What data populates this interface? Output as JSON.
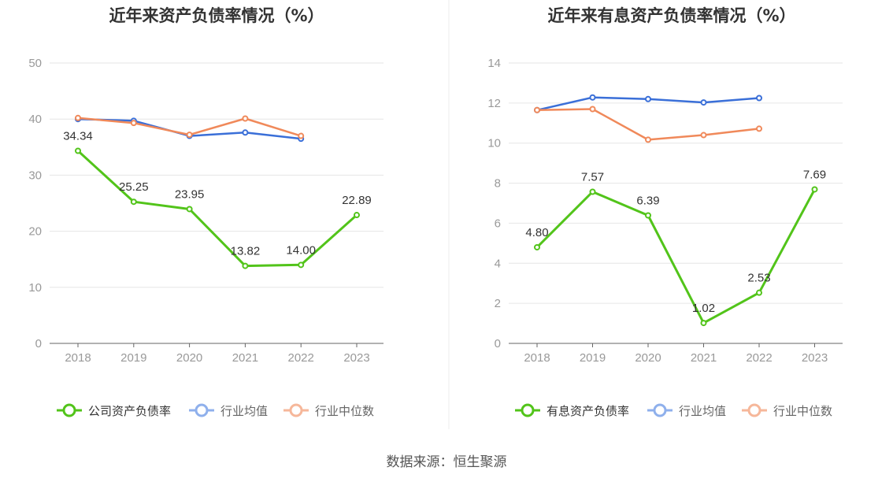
{
  "source": "数据来源：恒生聚源",
  "chart_data": [
    {
      "type": "line",
      "title": "近年来资产负债率情况（%）",
      "categories": [
        "2018",
        "2019",
        "2020",
        "2021",
        "2022",
        "2023"
      ],
      "yticks": [
        "0",
        "10",
        "20",
        "30",
        "40",
        "50"
      ],
      "ylim": [
        0,
        50
      ],
      "grid": true,
      "legend": "bottom",
      "series": [
        {
          "name": "公司资产负债率",
          "color": "#52c41a",
          "values": [
            34.34,
            25.25,
            23.95,
            13.82,
            14.0,
            22.89
          ],
          "labels": [
            "34.34",
            "25.25",
            "23.95",
            "13.82",
            "14.00",
            "22.89"
          ]
        },
        {
          "name": "行业均值",
          "color": "#3a6fd8",
          "values": [
            40.0,
            39.7,
            37.0,
            37.6,
            36.5,
            null
          ]
        },
        {
          "name": "行业中位数",
          "color": "#f0895a",
          "values": [
            40.2,
            39.3,
            37.2,
            40.1,
            37.0,
            null
          ]
        }
      ]
    },
    {
      "type": "line",
      "title": "近年来有息资产负债率情况（%）",
      "categories": [
        "2018",
        "2019",
        "2020",
        "2021",
        "2022",
        "2023"
      ],
      "yticks": [
        "0",
        "2",
        "4",
        "6",
        "8",
        "10",
        "12",
        "14"
      ],
      "ylim": [
        0,
        14
      ],
      "grid": true,
      "legend": "bottom",
      "series": [
        {
          "name": "有息资产负债率",
          "color": "#52c41a",
          "values": [
            4.8,
            7.57,
            6.39,
            1.02,
            2.53,
            7.69
          ],
          "labels": [
            "4.80",
            "7.57",
            "6.39",
            "1.02",
            "2.53",
            "7.69"
          ]
        },
        {
          "name": "行业均值",
          "color": "#3a6fd8",
          "values": [
            11.65,
            12.28,
            12.2,
            12.03,
            12.25,
            null
          ]
        },
        {
          "name": "行业中位数",
          "color": "#f0895a",
          "values": [
            11.65,
            11.7,
            10.17,
            10.4,
            10.72,
            null
          ]
        }
      ]
    }
  ]
}
